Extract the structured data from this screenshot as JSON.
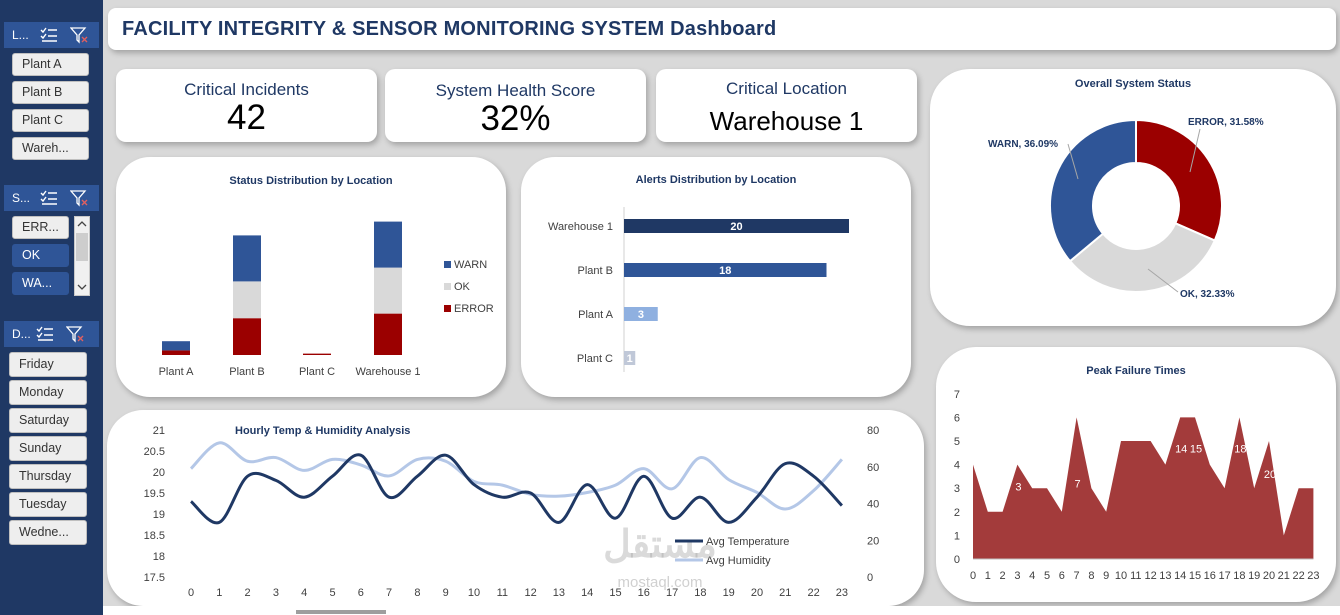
{
  "header": {
    "title": "FACILITY INTEGRITY & SENSOR MONITORING SYSTEM Dashboard"
  },
  "slicers": {
    "location": {
      "header_label": "L...",
      "items": [
        "Plant A",
        "Plant B",
        "Plant C",
        "Wareh..."
      ]
    },
    "status": {
      "header_label": "S...",
      "items": [
        "ERR...",
        "OK",
        "WA..."
      ]
    },
    "day": {
      "header_label": "D...",
      "items": [
        "Friday",
        "Monday",
        "Saturday",
        "Sunday",
        "Thursday",
        "Tuesday",
        "Wedne..."
      ]
    },
    "icons": [
      "multi-select-icon",
      "clear-filter-icon"
    ]
  },
  "kpis": {
    "critical_incidents": {
      "label": "Critical Incidents",
      "value": "42"
    },
    "health_score": {
      "label": "System Health Score",
      "value": "32%"
    },
    "critical_location": {
      "label": "Critical Location",
      "value": "Warehouse 1"
    }
  },
  "colors": {
    "warn": "#2f5597",
    "ok": "#d9d9d9",
    "error": "#9b0000",
    "humidity": "#b4c7e7",
    "temperature": "#1f3864",
    "area": "#a33b3b"
  },
  "chart_data": [
    {
      "id": "status_by_location",
      "type": "bar",
      "stacked": true,
      "title": "Status Distribution by Location",
      "categories": [
        "Plant A",
        "Plant B",
        "Plant C",
        "Warehouse 1"
      ],
      "series": [
        {
          "name": "ERROR",
          "values": [
            1,
            8,
            0.3,
            9
          ]
        },
        {
          "name": "OK",
          "values": [
            0,
            8,
            0,
            10
          ]
        },
        {
          "name": "WARN",
          "values": [
            2,
            10,
            0,
            10
          ]
        }
      ],
      "legend": [
        "WARN",
        "OK",
        "ERROR"
      ],
      "legend_position": "right"
    },
    {
      "id": "alerts_by_location",
      "type": "bar",
      "orientation": "horizontal",
      "title": "Alerts Distribution by Location",
      "categories": [
        "Warehouse 1",
        "Plant B",
        "Plant A",
        "Plant C"
      ],
      "values": [
        20,
        18,
        3,
        1
      ],
      "data_labels": [
        "20",
        "18",
        "3",
        "1"
      ]
    },
    {
      "id": "overall_status",
      "type": "pie",
      "donut": true,
      "title": "Overall System Status",
      "slices": [
        {
          "name": "ERROR",
          "value": 31.58,
          "label": "ERROR, 31.58%"
        },
        {
          "name": "OK",
          "value": 32.33,
          "label": "OK, 32.33%"
        },
        {
          "name": "WARN",
          "value": 36.09,
          "label": "WARN, 36.09%"
        }
      ]
    },
    {
      "id": "hourly_temp_humidity",
      "type": "line",
      "title": "Hourly Temp & Humidity Analysis",
      "x": [
        0,
        1,
        2,
        3,
        4,
        5,
        6,
        7,
        8,
        9,
        10,
        11,
        12,
        13,
        14,
        15,
        16,
        17,
        18,
        19,
        20,
        21,
        22,
        23
      ],
      "y_left": {
        "ylim": [
          17.5,
          21
        ],
        "ticks": [
          "21",
          "20.5",
          "20",
          "19.5",
          "19",
          "18.5",
          "18",
          "17.5"
        ]
      },
      "y_right": {
        "ylim": [
          0,
          80
        ],
        "ticks": [
          "80",
          "60",
          "40",
          "20",
          "0"
        ]
      },
      "series": [
        {
          "name": "Avg Temperature",
          "axis": "left",
          "values": [
            19.3,
            18.8,
            19.9,
            19.8,
            19.4,
            19.9,
            20.4,
            19.4,
            19.9,
            20.4,
            19.7,
            19.4,
            19.5,
            18.8,
            19.7,
            18.9,
            19.9,
            18.9,
            19.4,
            18.8,
            19.4,
            20.2,
            19.9,
            19.2
          ]
        },
        {
          "name": "Avg Humidity",
          "axis": "right",
          "values": [
            59,
            73,
            63,
            65,
            58,
            64,
            61,
            55,
            64,
            63,
            52,
            50,
            45,
            44,
            46,
            50,
            59,
            48,
            65,
            53,
            46,
            37,
            47,
            64
          ]
        }
      ],
      "legend": [
        "Avg Temperature",
        "Avg Humidity"
      ]
    },
    {
      "id": "peak_failure_times",
      "type": "area",
      "title": "Peak Failure Times",
      "x": [
        0,
        1,
        2,
        3,
        4,
        5,
        6,
        7,
        8,
        9,
        10,
        11,
        12,
        13,
        14,
        15,
        16,
        17,
        18,
        19,
        20,
        21,
        22,
        23
      ],
      "values": [
        4,
        2,
        2,
        4,
        3,
        3,
        2,
        6,
        3,
        2,
        5,
        5,
        5,
        4,
        6,
        6,
        4,
        3,
        6,
        3,
        5,
        1,
        3,
        3
      ],
      "ylim": [
        0,
        7
      ],
      "yticks": [
        "0",
        "1",
        "2",
        "3",
        "4",
        "5",
        "6",
        "7"
      ],
      "annotations": [
        {
          "x": 3,
          "text": "3"
        },
        {
          "x": 7,
          "text": "7"
        },
        {
          "x": 14,
          "text": "14"
        },
        {
          "x": 15,
          "text": "15"
        },
        {
          "x": 18,
          "text": "18"
        },
        {
          "x": 20,
          "text": "20"
        }
      ]
    }
  ],
  "watermark": {
    "text_ar": "مستقل",
    "text_en": "mostaql.com"
  }
}
